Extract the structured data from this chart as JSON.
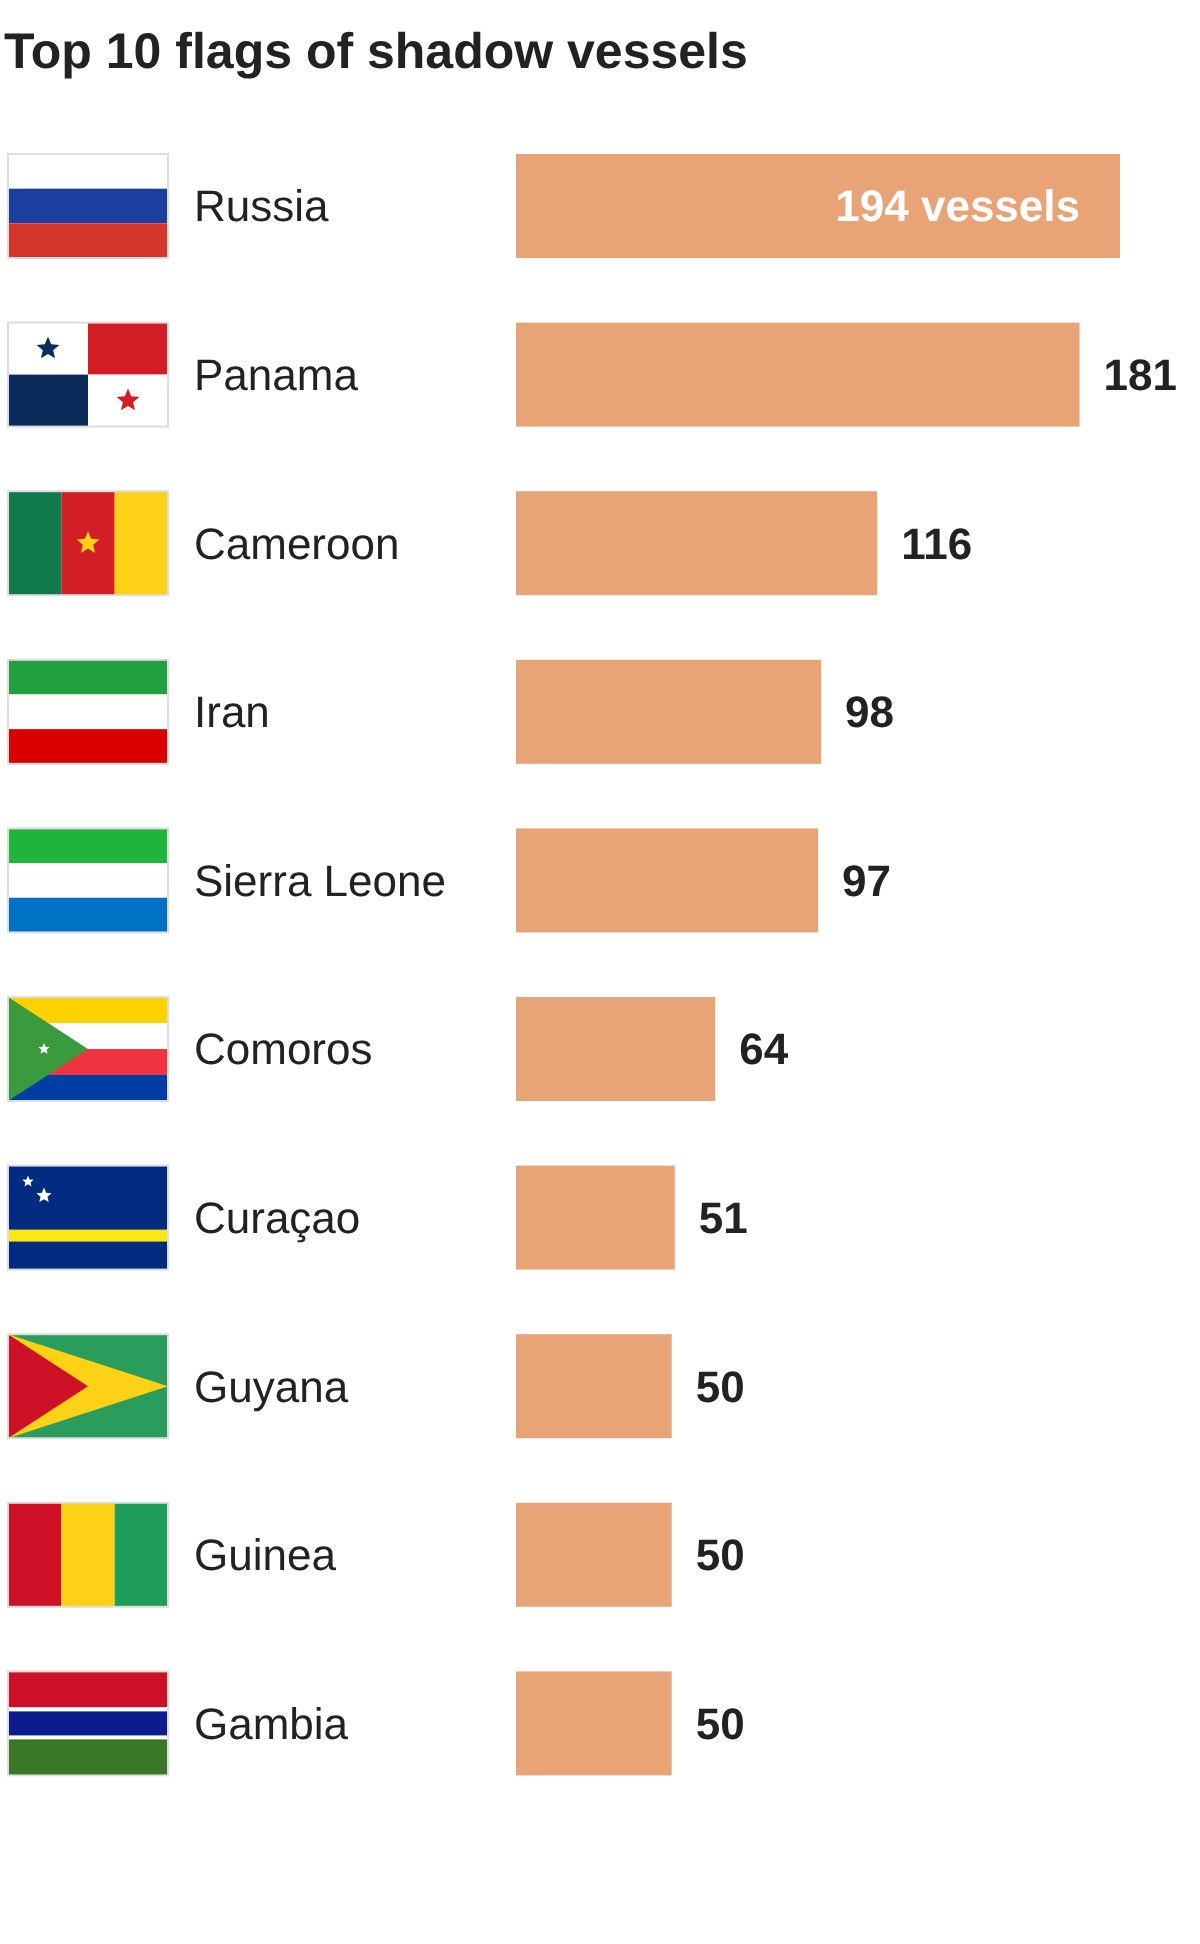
{
  "chart_data": {
    "type": "bar",
    "orientation": "horizontal",
    "title": "Top 10 flags of shadow vessels",
    "categories": [
      "Russia",
      "Panama",
      "Cameroon",
      "Iran",
      "Sierra Leone",
      "Comoros",
      "Curaçao",
      "Guyana",
      "Guinea",
      "Gambia"
    ],
    "values": [
      194,
      181,
      116,
      98,
      97,
      64,
      51,
      50,
      50,
      50
    ],
    "value_labels": [
      "194 vessels",
      "181",
      "116",
      "98",
      "97",
      "64",
      "51",
      "50",
      "50",
      "50"
    ],
    "color": "#e8a477",
    "tick_labels": "y"
  }
}
